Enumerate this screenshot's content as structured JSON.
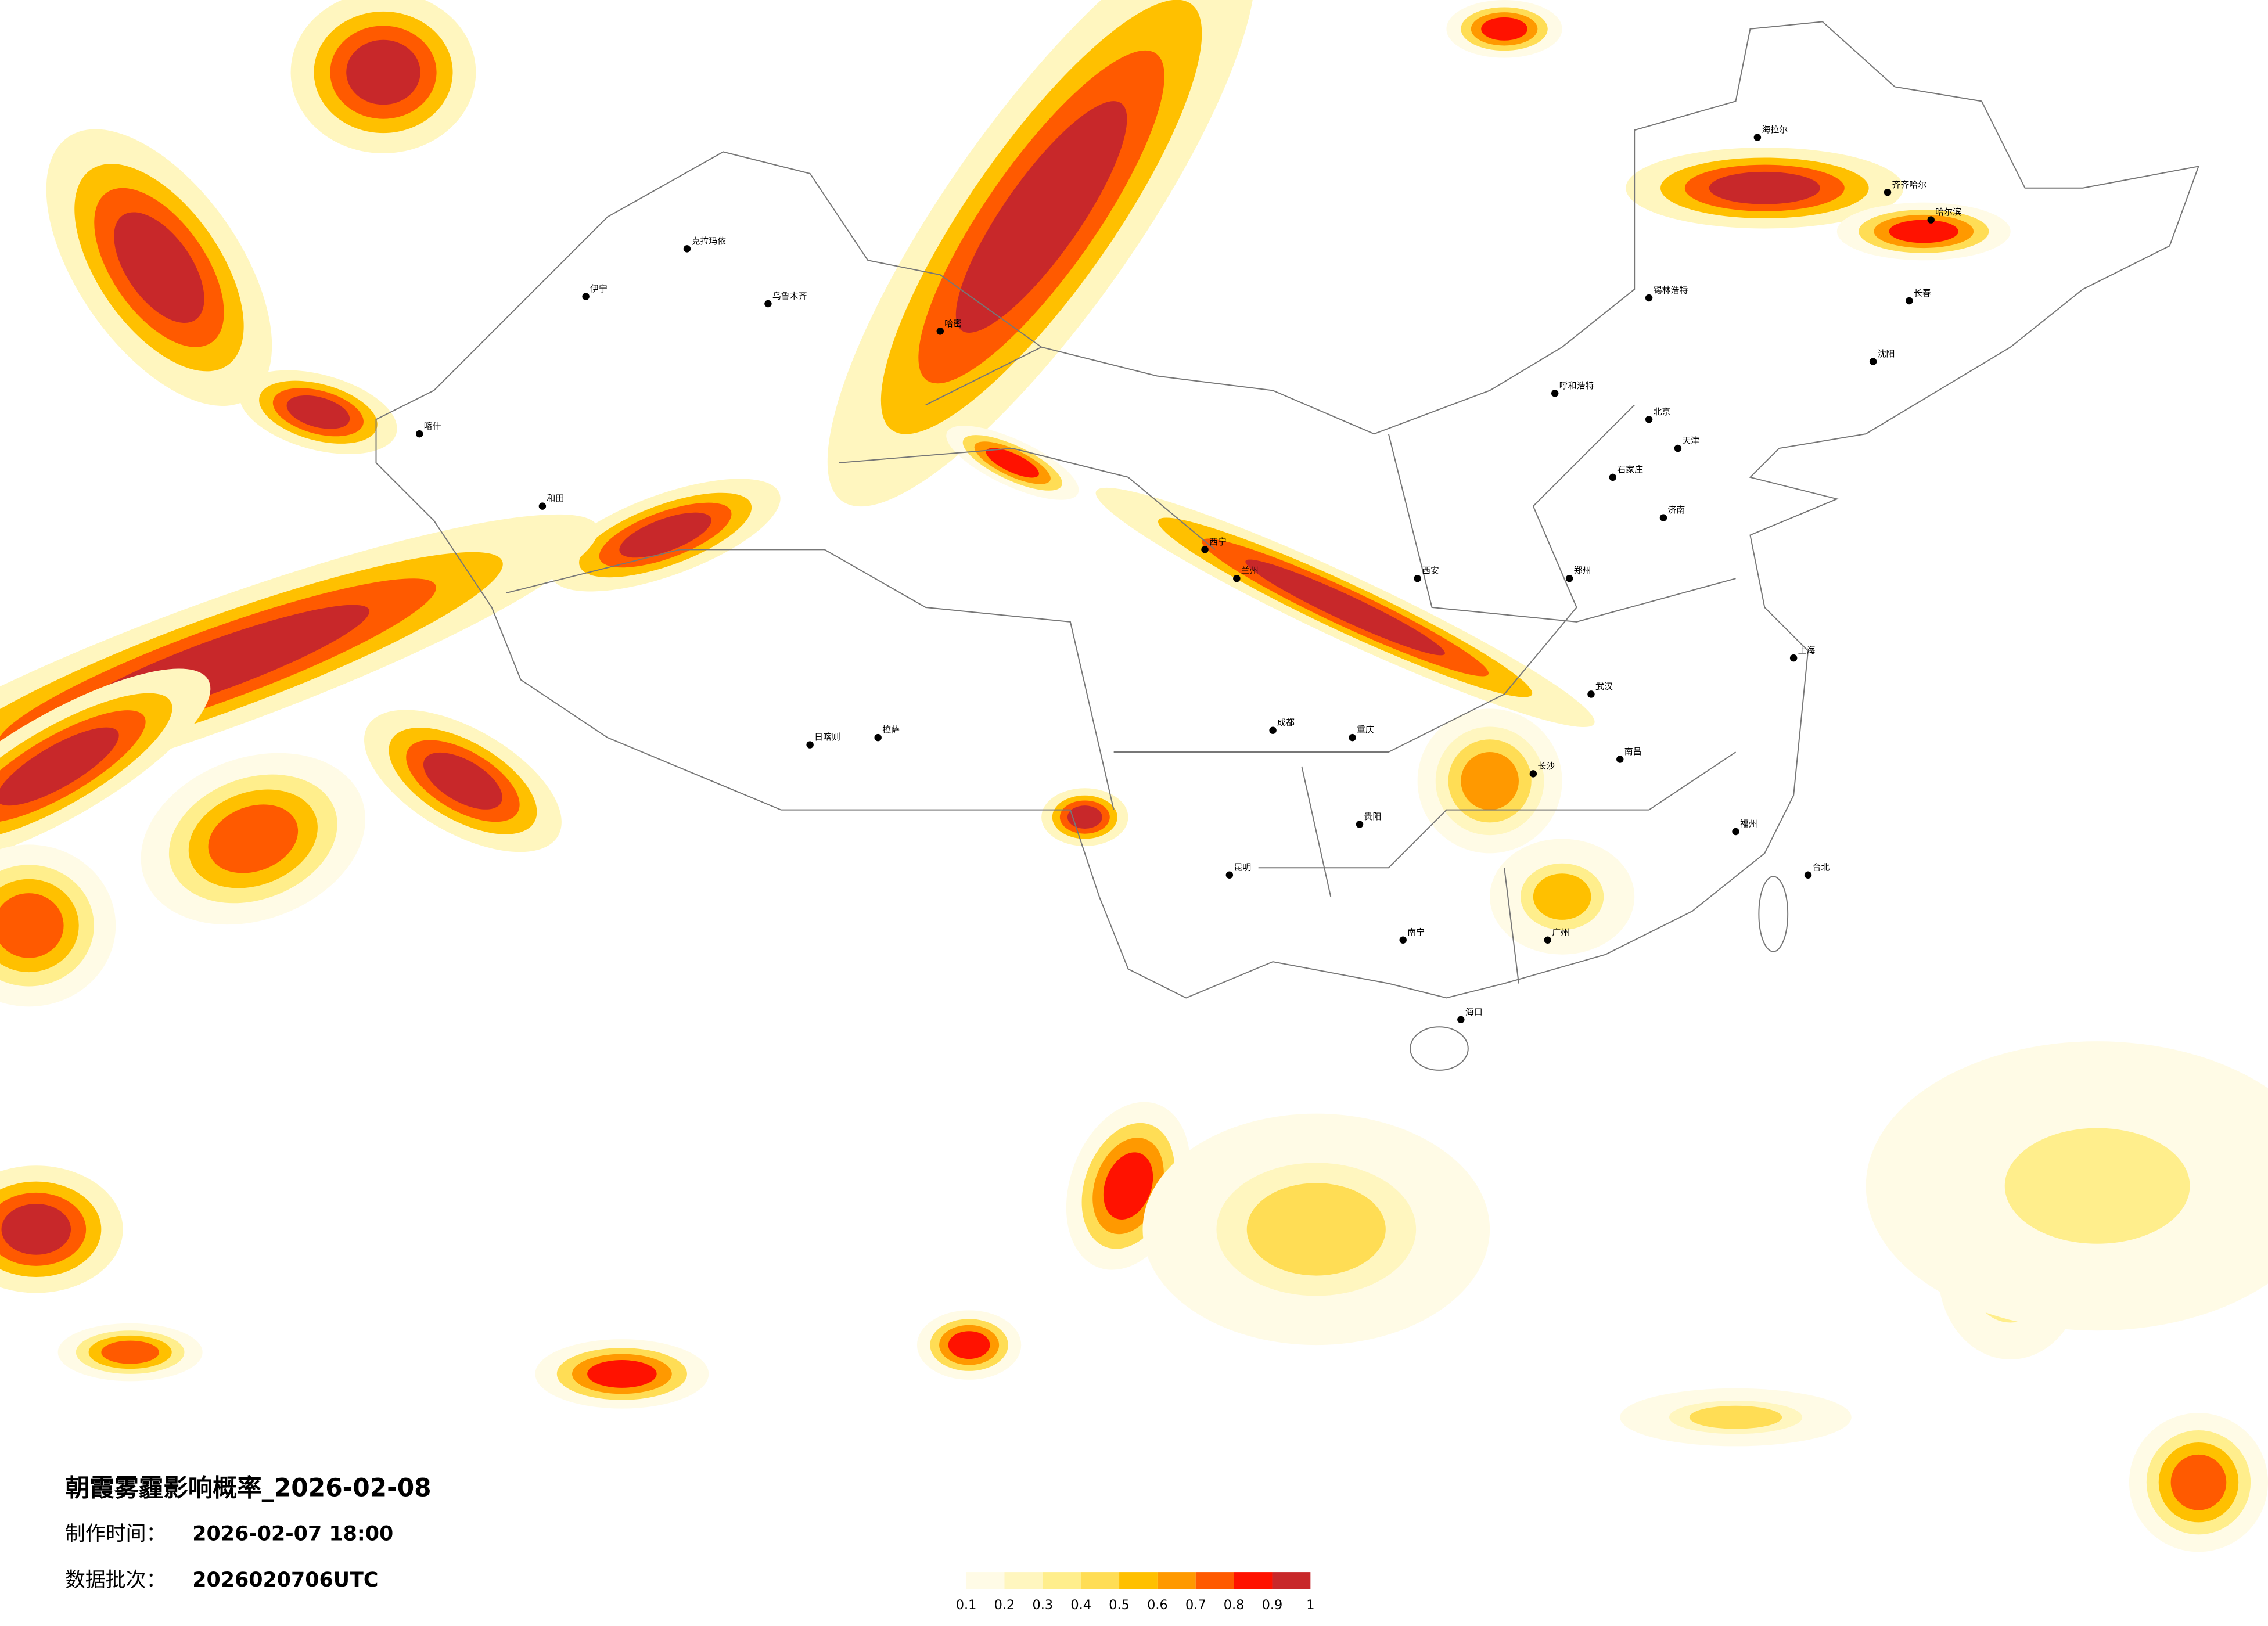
{
  "title": "朝霞雾霾影响概率_2026-02-08",
  "made_label": "制作时间：",
  "made_time": "2026-02-07 18:00",
  "batch_label": "数据批次：",
  "batch": "2026020706UTC",
  "legend": {
    "colors": [
      "#fffbe6",
      "#fff6bf",
      "#ffee8c",
      "#ffdd55",
      "#ffc000",
      "#ff9900",
      "#ff5a00",
      "#ff1200",
      "#c8282a"
    ],
    "ticks": [
      0.1,
      0.2,
      0.3,
      0.4,
      0.5,
      0.6,
      0.7,
      0.8,
      0.9,
      1
    ]
  },
  "cities": [
    "乌鲁木齐",
    "哈密",
    "喀什",
    "和田",
    "伊宁",
    "克拉玛依",
    "拉萨",
    "日喀则",
    "西宁",
    "兰州",
    "北京",
    "天津",
    "上海",
    "哈尔滨",
    "长春",
    "沈阳",
    "呼和浩特",
    "石家庄",
    "济南",
    "郑州",
    "西安",
    "武汉",
    "长沙",
    "南昌",
    "福州",
    "广州",
    "南宁",
    "昆明",
    "贵阳",
    "成都",
    "重庆",
    "海口",
    "台北",
    "锡林浩特",
    "海拉尔",
    "齐齐哈尔"
  ]
}
